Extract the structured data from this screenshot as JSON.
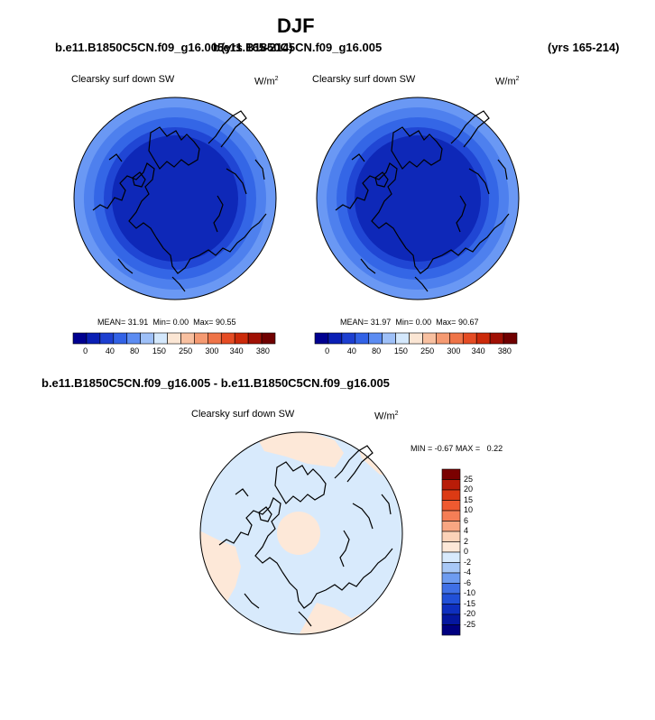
{
  "title": "DJF",
  "panels": [
    {
      "case": "b.e11.B1850C5CN.f09_g16.005",
      "years": "(yrs 165-214)",
      "variable": "Clearsky surf down SW",
      "units": "W/m",
      "units_sup": "2",
      "mean_label": "MEAN=",
      "mean": "31.91",
      "min_label": "Min=",
      "min": "0.00",
      "max_label": "Max=",
      "max": "90.55"
    },
    {
      "case": "b.e11.B1850C5CN.f09_g16.005",
      "years": "(yrs 165-214)",
      "variable": "Clearsky surf down SW",
      "units": "W/m",
      "units_sup": "2",
      "mean_label": "MEAN=",
      "mean": "31.97",
      "min_label": "Min=",
      "min": "0.00",
      "max_label": "Max=",
      "max": "90.67"
    }
  ],
  "diff": {
    "case": "b.e11.B1850C5CN.f09_g16.005 - b.e11.B1850C5CN.f09_g16.005",
    "variable": "Clearsky surf down SW",
    "units": "W/m",
    "units_sup": "2",
    "min_label": "MIN =",
    "min": "-0.67",
    "max_label": "MAX =",
    "max": "0.22"
  },
  "colorbar_main": {
    "labels": [
      "0",
      "40",
      "80",
      "150",
      "250",
      "300",
      "340",
      "380"
    ],
    "colors": [
      "#000090",
      "#0a1fb5",
      "#1d3fd0",
      "#3262e6",
      "#5c8cf2",
      "#9ec0f8",
      "#d4e8fc",
      "#fbe6d4",
      "#f8c0a0",
      "#f59a72",
      "#ef7448",
      "#e54c24",
      "#cc2a0a",
      "#a01004",
      "#700000"
    ]
  },
  "colorbar_diff": {
    "labels": [
      "25",
      "20",
      "15",
      "10",
      "6",
      "4",
      "2",
      "0",
      "-2",
      "-4",
      "-6",
      "-10",
      "-15",
      "-20",
      "-25"
    ],
    "colors": [
      "#7a0000",
      "#b81c08",
      "#dc3a14",
      "#ef5a30",
      "#f57e56",
      "#f8a682",
      "#fbd2b8",
      "#fde8d8",
      "#d8eafc",
      "#a8c8f6",
      "#6e9cf0",
      "#3f70e6",
      "#2150d8",
      "#0e2fbf",
      "#05179f",
      "#000080"
    ]
  },
  "map_colors": {
    "ring_outer": "#6a98f4",
    "ring_2": "#4e80ee",
    "ring_3": "#3466e6",
    "ring_4": "#2046d4",
    "ring_center": "#0e28b8",
    "diff_bg": "#d8eafc",
    "diff_pos": "#fde8d8"
  }
}
